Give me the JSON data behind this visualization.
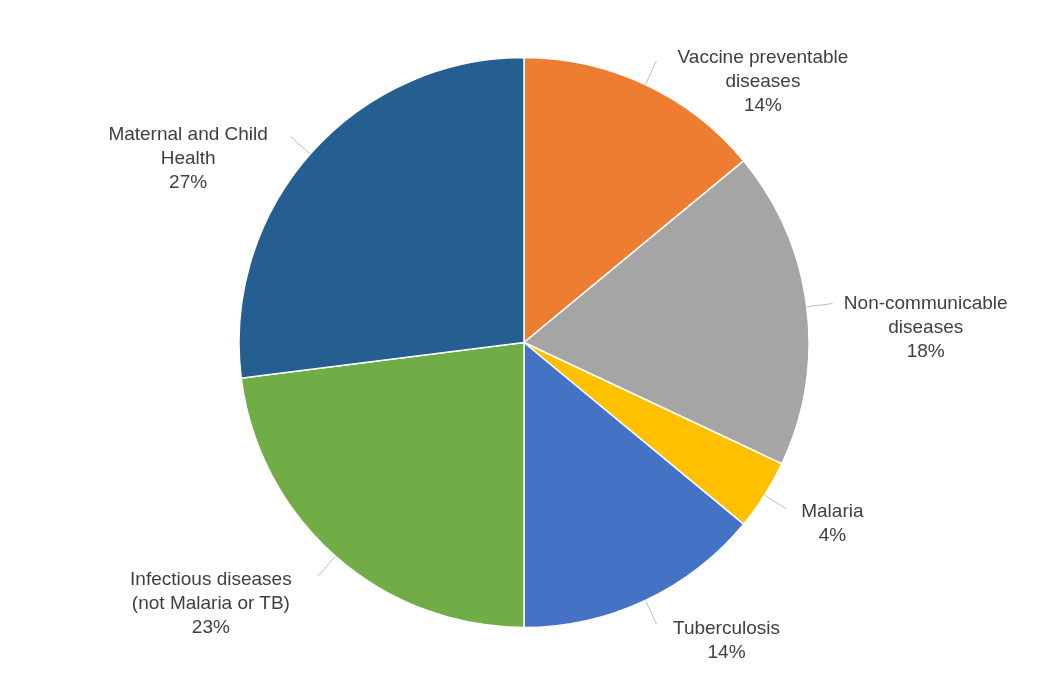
{
  "chart_data": {
    "type": "pie",
    "categories": [
      "Vaccine preventable diseases",
      "Non-communicable diseases",
      "Malaria",
      "Tuberculosis",
      "Infectious diseases (not Malaria or TB)",
      "Maternal and Child Health"
    ],
    "values": [
      14,
      18,
      4,
      14,
      23,
      27
    ],
    "value_labels": [
      "14%",
      "18%",
      "4%",
      "14%",
      "23%",
      "27%"
    ],
    "colors": [
      "#ed7d31",
      "#a5a5a5",
      "#ffc000",
      "#4472c4",
      "#70ad47",
      "#255e91"
    ]
  }
}
